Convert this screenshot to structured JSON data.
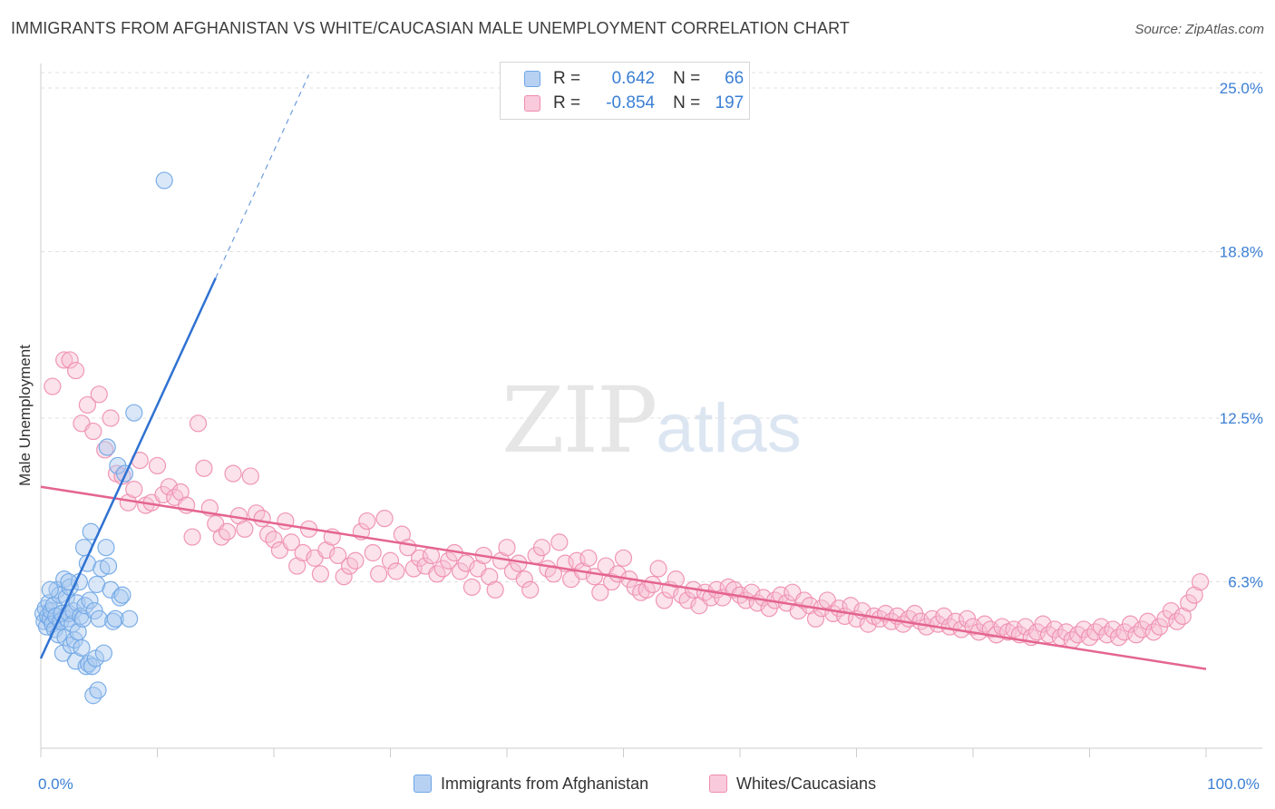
{
  "title": "IMMIGRANTS FROM AFGHANISTAN VS WHITE/CAUCASIAN MALE UNEMPLOYMENT CORRELATION CHART",
  "source": "Source: ZipAtlas.com",
  "watermark": {
    "zip": "ZIP",
    "atlas": "atlas"
  },
  "colors": {
    "blue": "#6fa6e6",
    "blue_fill": "#aac9f0",
    "blue_line": "#2f72d2",
    "pink": "#ee8cae",
    "pink_fill": "#f6bfd2",
    "pink_line": "#e4658f",
    "axis_text": "#3b7fd4",
    "grid": "#e0e0e0"
  },
  "legend": {
    "r_label": "R =",
    "n_label": "N =",
    "rows": [
      {
        "series": "blue",
        "r": "0.642",
        "n": "66"
      },
      {
        "series": "pink",
        "r": "-0.854",
        "n": "197"
      }
    ]
  },
  "chart_data": {
    "type": "scatter",
    "title": "IMMIGRANTS FROM AFGHANISTAN VS WHITE/CAUCASIAN MALE UNEMPLOYMENT CORRELATION CHART",
    "xlabel": "",
    "ylabel": "Male Unemployment",
    "xlim": [
      0,
      100
    ],
    "ylim": [
      0,
      25
    ],
    "x_ticks": [
      0,
      100
    ],
    "x_tick_labels": [
      "0.0%",
      "100.0%"
    ],
    "y_ticks": [
      6.3,
      12.5,
      18.8,
      25.0
    ],
    "y_tick_labels": [
      "6.3%",
      "12.5%",
      "18.8%",
      "25.0%"
    ],
    "grid": true,
    "legend_position": "top-center",
    "series": [
      {
        "name": "Immigrants from Afghanistan",
        "color": "blue",
        "R": 0.642,
        "N": 66,
        "trend": {
          "x0": 0,
          "y0": 3.4,
          "x1": 15,
          "y1": 17.8,
          "dash_to_x": 23,
          "dash_to_y": 25.5
        },
        "points": [
          [
            0.2,
            5.1
          ],
          [
            0.3,
            4.8
          ],
          [
            0.4,
            5.3
          ],
          [
            0.5,
            4.6
          ],
          [
            0.6,
            5.0
          ],
          [
            0.7,
            5.5
          ],
          [
            0.8,
            4.9
          ],
          [
            0.9,
            5.2
          ],
          [
            1.0,
            4.7
          ],
          [
            1.1,
            5.4
          ],
          [
            1.2,
            4.5
          ],
          [
            1.3,
            5.0
          ],
          [
            1.4,
            6.0
          ],
          [
            1.5,
            4.3
          ],
          [
            1.6,
            5.8
          ],
          [
            1.7,
            4.8
          ],
          [
            1.8,
            5.1
          ],
          [
            1.9,
            3.6
          ],
          [
            2.0,
            6.4
          ],
          [
            2.1,
            4.2
          ],
          [
            2.2,
            5.7
          ],
          [
            2.3,
            4.9
          ],
          [
            2.4,
            5.1
          ],
          [
            2.5,
            6.1
          ],
          [
            2.6,
            3.9
          ],
          [
            2.7,
            4.7
          ],
          [
            2.8,
            5.2
          ],
          [
            2.9,
            4.1
          ],
          [
            3.0,
            3.3
          ],
          [
            3.1,
            5.5
          ],
          [
            3.2,
            4.4
          ],
          [
            3.3,
            6.3
          ],
          [
            3.4,
            5.0
          ],
          [
            3.5,
            3.8
          ],
          [
            3.6,
            4.9
          ],
          [
            3.7,
            7.6
          ],
          [
            3.8,
            5.4
          ],
          [
            3.9,
            3.1
          ],
          [
            4.0,
            7.0
          ],
          [
            4.1,
            3.2
          ],
          [
            4.2,
            5.6
          ],
          [
            4.3,
            8.2
          ],
          [
            4.4,
            3.1
          ],
          [
            4.5,
            2.0
          ],
          [
            4.6,
            5.2
          ],
          [
            4.7,
            3.4
          ],
          [
            4.8,
            6.2
          ],
          [
            4.9,
            2.2
          ],
          [
            5.0,
            4.9
          ],
          [
            5.2,
            6.8
          ],
          [
            5.4,
            3.6
          ],
          [
            5.6,
            7.6
          ],
          [
            5.8,
            6.9
          ],
          [
            6.0,
            6.0
          ],
          [
            6.2,
            4.8
          ],
          [
            6.4,
            4.9
          ],
          [
            6.6,
            10.7
          ],
          [
            6.8,
            5.7
          ],
          [
            7.0,
            5.8
          ],
          [
            7.2,
            10.4
          ],
          [
            7.6,
            4.9
          ],
          [
            5.7,
            11.4
          ],
          [
            0.8,
            6.0
          ],
          [
            2.4,
            6.3
          ],
          [
            8.0,
            12.7
          ],
          [
            10.6,
            21.5
          ]
        ]
      },
      {
        "name": "Whites/Caucasians",
        "color": "pink",
        "R": -0.854,
        "N": 197,
        "trend": {
          "x0": 0,
          "y0": 9.9,
          "x1": 100,
          "y1": 3.0
        },
        "points": [
          [
            1.0,
            13.7
          ],
          [
            2.0,
            14.7
          ],
          [
            2.5,
            14.7
          ],
          [
            3.0,
            14.3
          ],
          [
            3.5,
            12.3
          ],
          [
            4.0,
            13.0
          ],
          [
            4.5,
            12.0
          ],
          [
            5.0,
            13.4
          ],
          [
            5.5,
            11.3
          ],
          [
            6.0,
            12.5
          ],
          [
            6.5,
            10.4
          ],
          [
            7.0,
            10.3
          ],
          [
            7.5,
            9.3
          ],
          [
            8.0,
            9.8
          ],
          [
            8.5,
            10.9
          ],
          [
            9.0,
            9.2
          ],
          [
            9.5,
            9.3
          ],
          [
            10.0,
            10.7
          ],
          [
            10.5,
            9.6
          ],
          [
            11.0,
            9.9
          ],
          [
            11.5,
            9.5
          ],
          [
            12.0,
            9.7
          ],
          [
            12.5,
            9.2
          ],
          [
            13.0,
            8.0
          ],
          [
            13.5,
            12.3
          ],
          [
            14.0,
            10.6
          ],
          [
            14.5,
            9.1
          ],
          [
            15.0,
            8.5
          ],
          [
            15.5,
            8.0
          ],
          [
            16.0,
            8.2
          ],
          [
            16.5,
            10.4
          ],
          [
            17.0,
            8.8
          ],
          [
            17.5,
            8.3
          ],
          [
            18.0,
            10.3
          ],
          [
            18.5,
            8.9
          ],
          [
            19.0,
            8.7
          ],
          [
            19.5,
            8.1
          ],
          [
            20.0,
            7.9
          ],
          [
            20.5,
            7.5
          ],
          [
            21.0,
            8.6
          ],
          [
            21.5,
            7.8
          ],
          [
            22.0,
            6.9
          ],
          [
            22.5,
            7.4
          ],
          [
            23.0,
            8.3
          ],
          [
            23.5,
            7.2
          ],
          [
            24.0,
            6.6
          ],
          [
            24.5,
            7.5
          ],
          [
            25.0,
            8.0
          ],
          [
            25.5,
            7.3
          ],
          [
            26.0,
            6.5
          ],
          [
            26.5,
            6.9
          ],
          [
            27.0,
            7.1
          ],
          [
            27.5,
            8.2
          ],
          [
            28.0,
            8.6
          ],
          [
            28.5,
            7.4
          ],
          [
            29.0,
            6.6
          ],
          [
            29.5,
            8.7
          ],
          [
            30.0,
            7.1
          ],
          [
            30.5,
            6.7
          ],
          [
            31.0,
            8.1
          ],
          [
            31.5,
            7.6
          ],
          [
            32.0,
            6.8
          ],
          [
            32.5,
            7.2
          ],
          [
            33.0,
            6.9
          ],
          [
            33.5,
            7.3
          ],
          [
            34.0,
            6.6
          ],
          [
            34.5,
            6.8
          ],
          [
            35.0,
            7.1
          ],
          [
            35.5,
            7.4
          ],
          [
            36.0,
            6.7
          ],
          [
            36.5,
            7.0
          ],
          [
            37.0,
            6.1
          ],
          [
            37.5,
            6.8
          ],
          [
            38.0,
            7.3
          ],
          [
            38.5,
            6.5
          ],
          [
            39.0,
            6.0
          ],
          [
            39.5,
            7.1
          ],
          [
            40.0,
            7.6
          ],
          [
            40.5,
            6.7
          ],
          [
            41.0,
            7.0
          ],
          [
            41.5,
            6.4
          ],
          [
            42.0,
            6.0
          ],
          [
            42.5,
            7.3
          ],
          [
            43.0,
            7.6
          ],
          [
            43.5,
            6.8
          ],
          [
            44.0,
            6.6
          ],
          [
            44.5,
            7.8
          ],
          [
            45.0,
            7.0
          ],
          [
            45.5,
            6.4
          ],
          [
            46.0,
            7.1
          ],
          [
            46.5,
            6.7
          ],
          [
            47.0,
            7.2
          ],
          [
            47.5,
            6.5
          ],
          [
            48.0,
            5.9
          ],
          [
            48.5,
            6.9
          ],
          [
            49.0,
            6.3
          ],
          [
            49.5,
            6.6
          ],
          [
            50.0,
            7.2
          ],
          [
            50.5,
            6.4
          ],
          [
            51.0,
            6.1
          ],
          [
            51.5,
            5.9
          ],
          [
            52.0,
            6.0
          ],
          [
            52.5,
            6.2
          ],
          [
            53.0,
            6.8
          ],
          [
            53.5,
            5.6
          ],
          [
            54.0,
            6.0
          ],
          [
            54.5,
            6.4
          ],
          [
            55.0,
            5.8
          ],
          [
            55.5,
            5.6
          ],
          [
            56.0,
            6.0
          ],
          [
            56.5,
            5.4
          ],
          [
            57.0,
            5.9
          ],
          [
            57.5,
            5.7
          ],
          [
            58.0,
            6.0
          ],
          [
            58.5,
            5.7
          ],
          [
            59.0,
            6.1
          ],
          [
            59.5,
            6.0
          ],
          [
            60.0,
            5.8
          ],
          [
            60.5,
            5.6
          ],
          [
            61.0,
            5.9
          ],
          [
            61.5,
            5.5
          ],
          [
            62.0,
            5.7
          ],
          [
            62.5,
            5.3
          ],
          [
            63.0,
            5.6
          ],
          [
            63.5,
            5.8
          ],
          [
            64.0,
            5.5
          ],
          [
            64.5,
            5.9
          ],
          [
            65.0,
            5.2
          ],
          [
            65.5,
            5.6
          ],
          [
            66.0,
            5.4
          ],
          [
            66.5,
            4.9
          ],
          [
            67.0,
            5.3
          ],
          [
            67.5,
            5.6
          ],
          [
            68.0,
            5.1
          ],
          [
            68.5,
            5.3
          ],
          [
            69.0,
            5.0
          ],
          [
            69.5,
            5.4
          ],
          [
            70.0,
            4.9
          ],
          [
            70.5,
            5.2
          ],
          [
            71.0,
            4.7
          ],
          [
            71.5,
            5.0
          ],
          [
            72.0,
            4.9
          ],
          [
            72.5,
            5.1
          ],
          [
            73.0,
            4.8
          ],
          [
            73.5,
            5.0
          ],
          [
            74.0,
            4.7
          ],
          [
            74.5,
            4.9
          ],
          [
            75.0,
            5.1
          ],
          [
            75.5,
            4.8
          ],
          [
            76.0,
            4.6
          ],
          [
            76.5,
            4.9
          ],
          [
            77.0,
            4.7
          ],
          [
            77.5,
            5.0
          ],
          [
            78.0,
            4.6
          ],
          [
            78.5,
            4.8
          ],
          [
            79.0,
            4.5
          ],
          [
            79.5,
            4.9
          ],
          [
            80.0,
            4.6
          ],
          [
            80.5,
            4.4
          ],
          [
            81.0,
            4.7
          ],
          [
            81.5,
            4.5
          ],
          [
            82.0,
            4.3
          ],
          [
            82.5,
            4.6
          ],
          [
            83.0,
            4.4
          ],
          [
            83.5,
            4.5
          ],
          [
            84.0,
            4.3
          ],
          [
            84.5,
            4.6
          ],
          [
            85.0,
            4.2
          ],
          [
            85.5,
            4.4
          ],
          [
            86.0,
            4.7
          ],
          [
            86.5,
            4.3
          ],
          [
            87.0,
            4.5
          ],
          [
            87.5,
            4.2
          ],
          [
            88.0,
            4.4
          ],
          [
            88.5,
            4.1
          ],
          [
            89.0,
            4.3
          ],
          [
            89.5,
            4.5
          ],
          [
            90.0,
            4.2
          ],
          [
            90.5,
            4.4
          ],
          [
            91.0,
            4.6
          ],
          [
            91.5,
            4.3
          ],
          [
            92.0,
            4.5
          ],
          [
            92.5,
            4.2
          ],
          [
            93.0,
            4.4
          ],
          [
            93.5,
            4.7
          ],
          [
            94.0,
            4.3
          ],
          [
            94.5,
            4.5
          ],
          [
            95.0,
            4.8
          ],
          [
            95.5,
            4.4
          ],
          [
            96.0,
            4.6
          ],
          [
            96.5,
            4.9
          ],
          [
            97.0,
            5.2
          ],
          [
            97.5,
            4.8
          ],
          [
            98.0,
            5.0
          ],
          [
            98.5,
            5.5
          ],
          [
            99.0,
            5.8
          ],
          [
            99.5,
            6.3
          ]
        ]
      }
    ]
  },
  "bottom_legend": {
    "items": [
      {
        "series": "blue",
        "label": "Immigrants from Afghanistan"
      },
      {
        "series": "pink",
        "label": "Whites/Caucasians"
      }
    ]
  }
}
